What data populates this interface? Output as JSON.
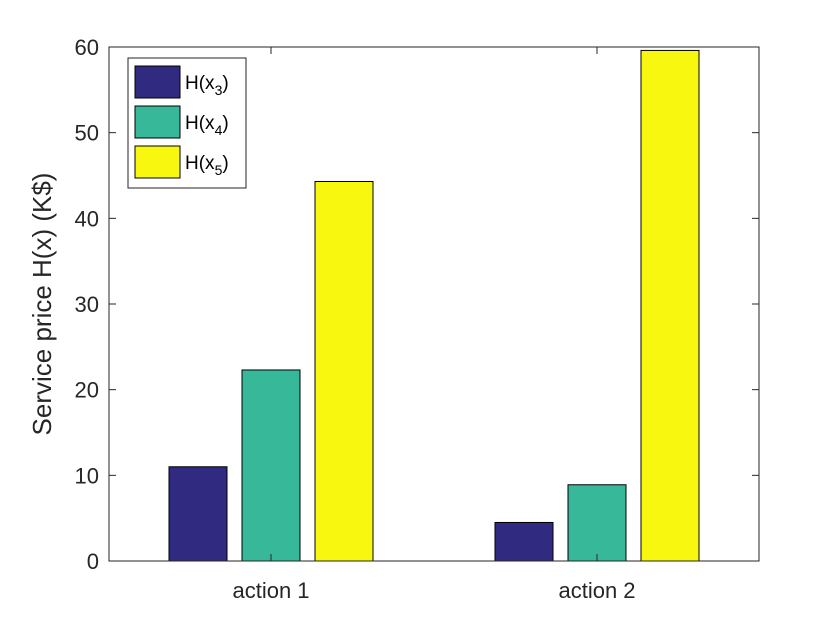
{
  "chart_data": {
    "type": "bar",
    "categories": [
      "action 1",
      "action 2"
    ],
    "series": [
      {
        "name": "H(x",
        "subscript": "3",
        "suffix": ")",
        "color": "#302a80",
        "values": [
          11.0,
          4.5
        ]
      },
      {
        "name": "H(x",
        "subscript": "4",
        "suffix": ")",
        "color": "#37b899",
        "values": [
          22.3,
          8.9
        ]
      },
      {
        "name": "H(x",
        "subscript": "5",
        "suffix": ")",
        "color": "#f7f70f",
        "values": [
          44.3,
          59.6
        ]
      }
    ],
    "ylabel": "Service price H(x) (K$)",
    "xlabel": "",
    "ylim": [
      0,
      60
    ],
    "yticks": [
      0,
      10,
      20,
      30,
      40,
      50,
      60
    ],
    "grid": false,
    "legend_position": "top-left"
  }
}
